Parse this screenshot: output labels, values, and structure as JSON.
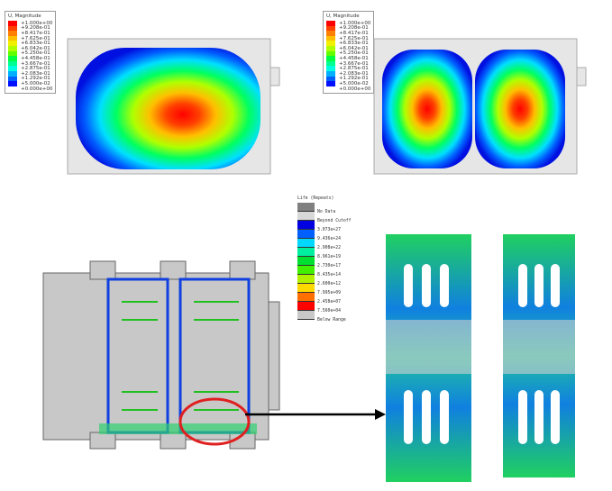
{
  "magnitude_legend": {
    "title": "U, Magnitude",
    "values": [
      "+1.000e+00",
      "+9.208e-01",
      "+8.417e-01",
      "+7.625e-01",
      "+6.833e-01",
      "+6.042e-01",
      "+5.250e-01",
      "+4.458e-01",
      "+3.667e-01",
      "+2.875e-01",
      "+2.083e-01",
      "+1.292e-01",
      "+5.000e-02",
      "+0.000e+00"
    ],
    "colors": [
      "#ff0000",
      "#ff4000",
      "#ff8000",
      "#ffbf00",
      "#f0f000",
      "#b0ff00",
      "#60ff00",
      "#00ff40",
      "#00ff90",
      "#00ffe0",
      "#00b0ff",
      "#0060ff",
      "#0010ff",
      "#ffffff"
    ]
  },
  "life_legend": {
    "title": "Life (Repeats)",
    "entries": [
      {
        "label": "No Data",
        "color": "#808080"
      },
      {
        "label": "Beyond Cutoff",
        "color": "#d8d8d8"
      },
      {
        "label": "3.073e+27",
        "color": "#0000e0"
      },
      {
        "label": "9.436e+24",
        "color": "#0060ff"
      },
      {
        "label": "2.908e+22",
        "color": "#00d8ff"
      },
      {
        "label": "8.961e+19",
        "color": "#00f0a0"
      },
      {
        "label": "2.730e+17",
        "color": "#00e030"
      },
      {
        "label": "8.435e+14",
        "color": "#40f000"
      },
      {
        "label": "2.600e+12",
        "color": "#b0f000"
      },
      {
        "label": "7.995e+09",
        "color": "#ffd800"
      },
      {
        "label": "2.458e+07",
        "color": "#ff7000"
      },
      {
        "label": "7.560e+04",
        "color": "#ff0000"
      },
      {
        "label": "Below Range",
        "color": "#c8c8c8"
      }
    ]
  }
}
